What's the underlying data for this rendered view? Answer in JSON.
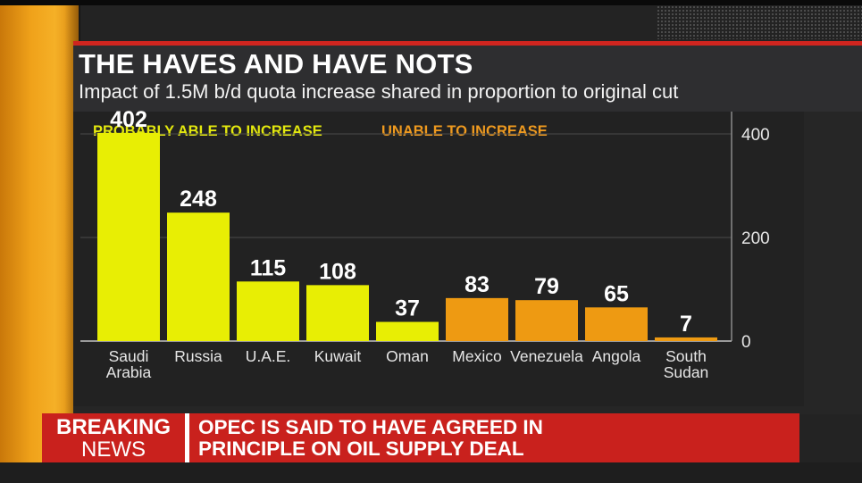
{
  "title": "THE HAVES AND HAVE NOTS",
  "subtitle": "Impact of  1.5M b/d quota increase shared in proportion to original cut",
  "legend": {
    "yellow_label": "PROBABLY ABLE TO INCREASE",
    "orange_label": "UNABLE TO INCREASE"
  },
  "colors": {
    "yellow": "#e8ee04",
    "orange": "#ee9a12",
    "accent_red": "#c9211d"
  },
  "chart_data": {
    "type": "bar",
    "categories": [
      [
        "Saudi",
        "Arabia"
      ],
      [
        "Russia"
      ],
      [
        "U.A.E."
      ],
      [
        "Kuwait"
      ],
      [
        "Oman"
      ],
      [
        "Mexico"
      ],
      [
        "Venezuela"
      ],
      [
        "Angola"
      ],
      [
        "South",
        "Sudan"
      ]
    ],
    "values": [
      402,
      248,
      115,
      108,
      37,
      83,
      79,
      65,
      7
    ],
    "groups": [
      "yellow",
      "yellow",
      "yellow",
      "yellow",
      "yellow",
      "orange",
      "orange",
      "orange",
      "orange"
    ],
    "ylim": [
      0,
      500
    ],
    "yticks": [
      0,
      200,
      400
    ],
    "y_axis_position": "right",
    "grid": true
  },
  "breaking": {
    "line1": "BREAKING",
    "line2": "NEWS",
    "headline_line1": "OPEC IS SAID TO HAVE AGREED IN",
    "headline_line2": "PRINCIPLE ON OIL SUPPLY DEAL"
  }
}
